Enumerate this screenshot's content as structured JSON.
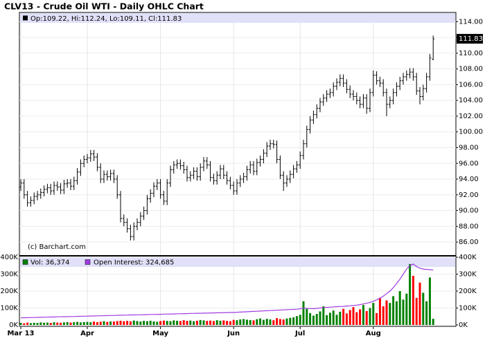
{
  "chart_data": [
    {
      "type": "ohlc",
      "title": "CLV13 - Crude Oil WTI - Daily OHLC Chart",
      "legend": "Op:109.22, Hi:112.24, Lo:109.11, Cl:111.83",
      "annotation": "(c) Barchart.com",
      "color": "#000000",
      "grid": true,
      "ylim": [
        84.25,
        115
      ],
      "yticks": [
        {
          "value": 86,
          "label": "86.00"
        },
        {
          "value": 88,
          "label": "88.00"
        },
        {
          "value": 90,
          "label": "90.00"
        },
        {
          "value": 92,
          "label": "92.00"
        },
        {
          "value": 94,
          "label": "94.00"
        },
        {
          "value": 96,
          "label": "96.00"
        },
        {
          "value": 98,
          "label": "98.00"
        },
        {
          "value": 100,
          "label": "100.00"
        },
        {
          "value": 102,
          "label": "102.00"
        },
        {
          "value": 104,
          "label": "104.00"
        },
        {
          "value": 106,
          "label": "106.00"
        },
        {
          "value": 108,
          "label": "108.00"
        },
        {
          "value": 110,
          "label": "110.00"
        },
        {
          "value": 112,
          "label": "112.00"
        },
        {
          "value": 114,
          "label": "114.00"
        }
      ],
      "categories": [
        "Mar 13",
        null,
        null,
        null,
        null,
        null,
        null,
        null,
        null,
        null,
        null,
        null,
        null,
        null,
        null,
        null,
        null,
        null,
        null,
        null,
        "Apr",
        null,
        null,
        null,
        null,
        null,
        null,
        null,
        null,
        null,
        null,
        null,
        null,
        null,
        null,
        null,
        null,
        null,
        null,
        null,
        null,
        null,
        "May",
        null,
        null,
        null,
        null,
        null,
        null,
        null,
        null,
        null,
        null,
        null,
        null,
        null,
        null,
        null,
        null,
        null,
        null,
        null,
        null,
        null,
        "Jun",
        null,
        null,
        null,
        null,
        null,
        null,
        null,
        null,
        null,
        null,
        null,
        null,
        null,
        null,
        null,
        null,
        null,
        null,
        null,
        "Jul",
        null,
        null,
        null,
        null,
        null,
        null,
        null,
        null,
        null,
        null,
        null,
        null,
        null,
        null,
        null,
        null,
        null,
        null,
        null,
        null,
        null,
        "Aug",
        null,
        null,
        null,
        null,
        null,
        null,
        null,
        null,
        null,
        null,
        null,
        null,
        null,
        null,
        null,
        null,
        null,
        null
      ],
      "open": [
        93.0,
        93.5,
        92.0,
        91.0,
        91.3,
        91.8,
        92.0,
        92.3,
        92.7,
        92.9,
        92.5,
        93.2,
        93.0,
        92.6,
        93.4,
        93.5,
        93.1,
        93.8,
        94.9,
        96.0,
        96.5,
        96.7,
        97.2,
        96.8,
        95.5,
        94.0,
        94.6,
        94.3,
        94.7,
        94.0,
        92.0,
        89.0,
        88.5,
        87.7,
        86.7,
        88.0,
        88.5,
        89.3,
        90.0,
        91.5,
        92.2,
        93.1,
        93.5,
        92.0,
        91.2,
        93.5,
        95.2,
        95.8,
        96.0,
        95.7,
        95.2,
        94.2,
        94.5,
        95.0,
        94.3,
        95.5,
        96.3,
        95.8,
        94.2,
        93.8,
        94.5,
        95.3,
        94.5,
        93.8,
        93.2,
        92.5,
        93.5,
        94.0,
        94.3,
        95.2,
        95.8,
        95.0,
        96.1,
        96.5,
        97.3,
        98.2,
        98.5,
        98.4,
        96.5,
        94.5,
        93.5,
        94.0,
        94.6,
        95.3,
        95.8,
        97.0,
        98.5,
        100.3,
        101.5,
        102.2,
        103.0,
        103.8,
        104.3,
        104.8,
        105.0,
        105.8,
        106.3,
        106.8,
        106.2,
        105.4,
        104.8,
        104.5,
        104.0,
        103.5,
        104.3,
        103.0,
        105.0,
        107.2,
        106.5,
        106.2,
        105.0,
        103.5,
        104.0,
        105.0,
        105.8,
        106.5,
        107.0,
        107.3,
        107.6,
        107.0,
        105.2,
        104.5,
        105.5,
        107.0,
        109.22
      ],
      "high": [
        94.0,
        94.0,
        92.5,
        91.8,
        92.3,
        92.5,
        92.8,
        93.2,
        93.4,
        93.4,
        93.7,
        93.7,
        93.5,
        93.9,
        94.0,
        94.0,
        94.3,
        95.4,
        96.5,
        97.0,
        97.2,
        97.7,
        97.7,
        97.3,
        96.0,
        95.1,
        95.1,
        95.2,
        95.2,
        94.5,
        92.5,
        89.5,
        89.0,
        88.2,
        88.5,
        89.0,
        89.8,
        90.5,
        92.0,
        92.7,
        93.6,
        94.0,
        94.0,
        92.5,
        94.0,
        95.7,
        96.3,
        96.5,
        96.5,
        96.2,
        95.7,
        95.0,
        95.5,
        95.5,
        96.0,
        96.8,
        96.8,
        96.3,
        94.7,
        95.0,
        95.8,
        95.8,
        95.0,
        94.3,
        93.7,
        94.0,
        94.5,
        94.8,
        95.7,
        96.3,
        96.3,
        96.6,
        97.0,
        97.8,
        98.7,
        99.0,
        99.0,
        98.9,
        97.0,
        95.0,
        94.5,
        95.1,
        95.8,
        96.3,
        97.5,
        99.0,
        100.8,
        102.0,
        102.7,
        103.5,
        104.3,
        104.8,
        105.3,
        105.5,
        106.3,
        106.8,
        107.3,
        107.3,
        106.7,
        105.9,
        105.3,
        105.0,
        104.5,
        104.8,
        104.8,
        105.5,
        107.8,
        107.7,
        107.0,
        106.7,
        105.5,
        104.5,
        105.5,
        106.3,
        107.0,
        107.5,
        107.8,
        108.1,
        108.1,
        107.5,
        105.7,
        106.0,
        107.5,
        109.9,
        112.24
      ],
      "low": [
        92.5,
        91.5,
        90.5,
        90.5,
        90.8,
        91.3,
        91.5,
        91.8,
        92.2,
        92.0,
        92.0,
        92.5,
        92.1,
        92.1,
        92.9,
        92.6,
        92.6,
        93.3,
        94.4,
        95.5,
        96.0,
        96.2,
        96.3,
        95.0,
        93.5,
        93.5,
        93.8,
        93.8,
        93.5,
        91.5,
        88.5,
        88.0,
        87.2,
        86.2,
        86.2,
        87.5,
        88.0,
        88.8,
        89.5,
        91.0,
        91.7,
        92.6,
        91.5,
        90.7,
        90.7,
        93.0,
        94.7,
        95.3,
        95.2,
        94.7,
        93.7,
        93.7,
        94.0,
        93.8,
        93.8,
        95.0,
        95.3,
        93.7,
        93.3,
        93.3,
        94.0,
        94.0,
        93.3,
        92.7,
        92.0,
        92.0,
        93.0,
        93.5,
        93.8,
        94.7,
        94.5,
        94.5,
        95.6,
        96.0,
        96.8,
        97.7,
        97.9,
        96.0,
        94.0,
        92.5,
        93.0,
        93.5,
        94.1,
        94.8,
        95.3,
        96.5,
        98.0,
        99.8,
        101.0,
        101.7,
        102.5,
        103.3,
        103.8,
        104.3,
        104.5,
        105.3,
        105.8,
        105.7,
        104.9,
        104.3,
        104.0,
        103.5,
        103.0,
        103.0,
        102.3,
        102.5,
        104.5,
        106.0,
        105.7,
        104.5,
        102.0,
        103.0,
        103.5,
        104.5,
        105.3,
        106.0,
        106.5,
        106.8,
        106.5,
        104.7,
        103.5,
        104.0,
        105.0,
        106.5,
        109.11
      ],
      "close": [
        93.5,
        92.0,
        91.0,
        91.3,
        91.8,
        92.0,
        92.3,
        92.7,
        92.9,
        92.5,
        93.2,
        93.0,
        92.6,
        93.4,
        93.5,
        93.1,
        93.8,
        94.9,
        96.0,
        96.5,
        96.7,
        97.2,
        96.8,
        95.5,
        94.0,
        94.6,
        94.3,
        94.7,
        94.0,
        92.0,
        89.0,
        88.5,
        87.7,
        86.7,
        88.0,
        88.5,
        89.3,
        90.0,
        91.5,
        92.2,
        93.1,
        93.5,
        92.0,
        91.2,
        93.5,
        95.2,
        95.8,
        96.0,
        95.7,
        95.2,
        94.2,
        94.5,
        95.0,
        94.3,
        95.5,
        96.3,
        95.8,
        94.2,
        93.8,
        94.5,
        95.3,
        94.5,
        93.8,
        93.2,
        92.5,
        93.5,
        94.0,
        94.3,
        95.2,
        95.8,
        95.0,
        96.1,
        96.5,
        97.3,
        98.2,
        98.5,
        98.4,
        96.5,
        94.5,
        93.5,
        94.0,
        94.6,
        95.3,
        95.8,
        97.0,
        98.5,
        100.3,
        101.5,
        102.2,
        103.0,
        103.8,
        104.3,
        104.8,
        105.0,
        105.8,
        106.3,
        106.8,
        106.2,
        105.4,
        104.8,
        104.5,
        104.0,
        103.5,
        104.3,
        103.0,
        105.0,
        107.2,
        106.5,
        106.2,
        105.0,
        103.5,
        104.0,
        105.0,
        105.8,
        106.5,
        107.0,
        107.3,
        107.6,
        107.0,
        105.2,
        104.5,
        105.5,
        107.0,
        109.4,
        111.83
      ]
    },
    {
      "type": "volume",
      "grid": true,
      "ylim": [
        0,
        400000
      ],
      "yticks": [
        {
          "value": 0,
          "label": "0K"
        },
        {
          "value": 100000,
          "label": "100K"
        },
        {
          "value": 200000,
          "label": "200K"
        },
        {
          "value": 300000,
          "label": "300K"
        },
        {
          "value": 400000,
          "label": "400K"
        }
      ],
      "series": [
        {
          "name": "Vol: 36,374",
          "up_color": "#008000",
          "down_color": "#ff0000",
          "color": "#008000",
          "values": [
            12000,
            10000,
            14000,
            11000,
            13000,
            12000,
            15000,
            13000,
            14000,
            12000,
            16000,
            14000,
            13000,
            15000,
            17000,
            14000,
            16000,
            18000,
            15000,
            17000,
            18000,
            16000,
            20000,
            17000,
            19000,
            22000,
            18000,
            21000,
            20000,
            23000,
            25000,
            22000,
            24000,
            21000,
            26000,
            23000,
            20000,
            24000,
            22000,
            25000,
            21000,
            19000,
            23000,
            26000,
            24000,
            22000,
            27000,
            25000,
            23000,
            28000,
            24000,
            26000,
            22000,
            25000,
            29000,
            27000,
            24000,
            26000,
            23000,
            28000,
            25000,
            27000,
            24000,
            22000,
            30000,
            28000,
            33000,
            35000,
            31000,
            29000,
            27000,
            34000,
            38000,
            30000,
            36000,
            33000,
            28000,
            40000,
            35000,
            32000,
            38000,
            42000,
            45000,
            52000,
            60000,
            140000,
            95000,
            70000,
            55000,
            65000,
            80000,
            110000,
            58000,
            72000,
            85000,
            60000,
            78000,
            95000,
            68000,
            88000,
            105000,
            75000,
            92000,
            118000,
            82000,
            100000,
            130000,
            70000,
            160000,
            110000,
            145000,
            130000,
            170000,
            140000,
            200000,
            150000,
            185000,
            360000,
            290000,
            160000,
            250000,
            190000,
            140000,
            280000,
            36374
          ]
        },
        {
          "name": "Open Interest: 324,685",
          "color": "#a03ce0",
          "values": [
            42000,
            43000,
            43000,
            44000,
            44000,
            45000,
            45000,
            46000,
            46000,
            47000,
            47000,
            48000,
            48000,
            49000,
            49000,
            50000,
            50000,
            51000,
            51000,
            52000,
            52000,
            53000,
            53000,
            54000,
            54000,
            55000,
            55000,
            56000,
            56000,
            57000,
            57000,
            58000,
            58000,
            59000,
            59000,
            60000,
            60000,
            61000,
            61000,
            62000,
            62000,
            63000,
            63000,
            64000,
            64000,
            65000,
            65000,
            66000,
            66000,
            67000,
            67000,
            68000,
            68000,
            69000,
            69000,
            70000,
            70000,
            71000,
            71000,
            72000,
            72000,
            73000,
            73000,
            74000,
            74000,
            75000,
            76000,
            77000,
            78000,
            79000,
            80000,
            81000,
            82000,
            83000,
            84000,
            85000,
            86000,
            87000,
            88000,
            89000,
            90000,
            91000,
            92000,
            93000,
            95000,
            100000,
            98000,
            97000,
            96000,
            98000,
            100000,
            103000,
            104000,
            105000,
            107000,
            108000,
            109000,
            110000,
            112000,
            113000,
            115000,
            117000,
            120000,
            124000,
            128000,
            133000,
            140000,
            148000,
            158000,
            170000,
            185000,
            200000,
            220000,
            245000,
            270000,
            300000,
            330000,
            350000,
            360000,
            345000,
            335000,
            330000,
            328000,
            326000,
            324685
          ]
        }
      ]
    }
  ]
}
